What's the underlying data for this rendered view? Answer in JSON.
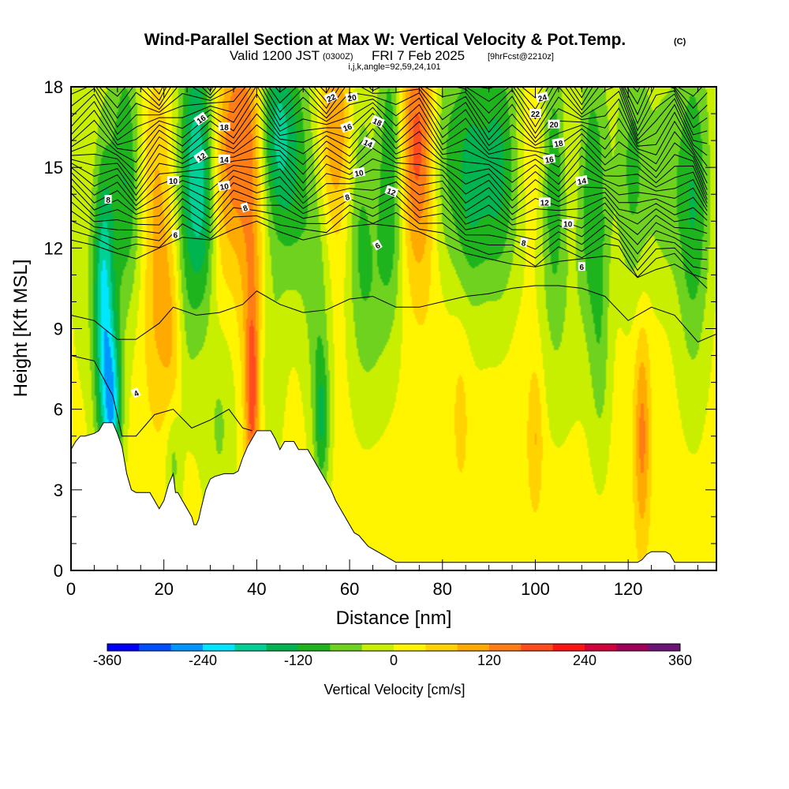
{
  "title": {
    "main": "Wind-Parallel Section at Max W: Vertical Velocity & Pot.Temp.",
    "main_mark": "(C)",
    "valid_a": "Valid 1200 JST",
    "valid_b": "(0300Z)",
    "valid_c": "FRI 7 Feb 2025",
    "valid_d": "[9hrFcst@2210z]",
    "indices": "i,j,k,angle=92,59,24,101"
  },
  "chart_data": {
    "type": "heatmap",
    "xlabel": "Distance [nm]",
    "ylabel": "Height [Kft MSL]",
    "xlim": [
      0,
      139
    ],
    "ylim": [
      0,
      18
    ],
    "x_ticks": [
      "0",
      "20",
      "40",
      "60",
      "80",
      "100",
      "120"
    ],
    "y_ticks": [
      "0",
      "3",
      "6",
      "9",
      "12",
      "15",
      "18"
    ],
    "colorbar": {
      "label": "Vertical Velocity [cm/s]",
      "min": -360,
      "max": 360,
      "step": 40,
      "tick_labels": [
        "-360",
        "-240",
        "-120",
        "0",
        "120",
        "240",
        "360"
      ],
      "colors": [
        "#0000ff",
        "#0050ff",
        "#0096ff",
        "#00e6ff",
        "#00d296",
        "#00b450",
        "#1eb41e",
        "#6ed21e",
        "#c8ee00",
        "#fff500",
        "#ffd200",
        "#ffaa00",
        "#ff7d14",
        "#ff4b1e",
        "#ff1414",
        "#d2003c",
        "#a0005a",
        "#6e1478"
      ]
    },
    "terrain": {
      "x": [
        0,
        1,
        2,
        3,
        5,
        6,
        7,
        9,
        10,
        11,
        12,
        13,
        14,
        17,
        18,
        19,
        20,
        21,
        22,
        22.5,
        23,
        24,
        25,
        26,
        26.5,
        27,
        27.5,
        28,
        29,
        30,
        31,
        33,
        35,
        36,
        37,
        38,
        39,
        40,
        41,
        43,
        44,
        45,
        46,
        48,
        49,
        50,
        51,
        52,
        53,
        54,
        55,
        56,
        57,
        58,
        59,
        60,
        61,
        62,
        63,
        64,
        65,
        66,
        67,
        68,
        69,
        70,
        71,
        76,
        80,
        85,
        90,
        95,
        100,
        105,
        110,
        115,
        120,
        122,
        123,
        124,
        125,
        126,
        128,
        129,
        130,
        132,
        135,
        139
      ],
      "y": [
        4.5,
        4.8,
        5.0,
        5.0,
        5.1,
        5.2,
        5.5,
        5.5,
        5.1,
        4.6,
        3.6,
        3.0,
        2.9,
        2.9,
        2.6,
        2.3,
        2.6,
        3.2,
        3.6,
        2.9,
        2.9,
        2.6,
        2.3,
        2.0,
        1.7,
        1.7,
        1.9,
        2.3,
        3.0,
        3.4,
        3.5,
        3.6,
        3.6,
        3.7,
        4.2,
        4.6,
        4.9,
        5.2,
        5.2,
        5.2,
        4.9,
        4.5,
        4.8,
        4.8,
        4.5,
        4.5,
        4.5,
        4.2,
        3.9,
        3.6,
        3.3,
        3.0,
        2.6,
        2.3,
        2.0,
        1.7,
        1.4,
        1.3,
        1.1,
        0.9,
        0.8,
        0.7,
        0.6,
        0.5,
        0.4,
        0.3,
        0.3,
        0.3,
        0.3,
        0.3,
        0.3,
        0.3,
        0.3,
        0.3,
        0.3,
        0.3,
        0.3,
        0.3,
        0.4,
        0.6,
        0.7,
        0.7,
        0.7,
        0.6,
        0.3,
        0.3,
        0.3,
        0.3
      ]
    },
    "w_features": [
      {
        "x": 7,
        "y": 9.5,
        "sx": 1.5,
        "sy": 4.0,
        "w": -180
      },
      {
        "x": 9,
        "y": 6.0,
        "sx": 1.4,
        "sy": 2.2,
        "w": -200
      },
      {
        "x": 12,
        "y": 15.0,
        "sx": 2.5,
        "sy": 3.5,
        "w": -130
      },
      {
        "x": 6,
        "y": 10.0,
        "sx": 4.0,
        "sy": 3.0,
        "w": -40
      },
      {
        "x": 16,
        "y": 16.0,
        "sx": 3.0,
        "sy": 2.5,
        "w": 40
      },
      {
        "x": 19,
        "y": 11.5,
        "sx": 2.5,
        "sy": 4.0,
        "w": 90
      },
      {
        "x": 22,
        "y": 9.0,
        "sx": 1.5,
        "sy": 2.5,
        "w": 60
      },
      {
        "x": 25,
        "y": 11.0,
        "sx": 2.5,
        "sy": 3.5,
        "w": -80
      },
      {
        "x": 27,
        "y": 16.0,
        "sx": 2.5,
        "sy": 3.0,
        "w": -150
      },
      {
        "x": 29,
        "y": 12.5,
        "sx": 1.8,
        "sy": 2.5,
        "w": -90
      },
      {
        "x": 22,
        "y": 4.0,
        "sx": 1.2,
        "sy": 1.5,
        "w": -70
      },
      {
        "x": 31,
        "y": 13.0,
        "sx": 2.5,
        "sy": 3.0,
        "w": 50
      },
      {
        "x": 35,
        "y": 16.0,
        "sx": 2.5,
        "sy": 3.0,
        "w": 130
      },
      {
        "x": 39,
        "y": 14.0,
        "sx": 2.0,
        "sy": 5.0,
        "w": 110
      },
      {
        "x": 39,
        "y": 6.5,
        "sx": 1.0,
        "sy": 2.5,
        "w": 150
      },
      {
        "x": 32,
        "y": 5.5,
        "sx": 2.5,
        "sy": 3.0,
        "w": -60
      },
      {
        "x": 43,
        "y": 8.0,
        "sx": 2.0,
        "sy": 3.0,
        "w": -50
      },
      {
        "x": 44,
        "y": 16.5,
        "sx": 2.5,
        "sy": 2.5,
        "w": -130
      },
      {
        "x": 48,
        "y": 15.0,
        "sx": 3.0,
        "sy": 3.5,
        "w": -100
      },
      {
        "x": 53,
        "y": 10.0,
        "sx": 2.0,
        "sy": 3.5,
        "w": -70
      },
      {
        "x": 54,
        "y": 5.5,
        "sx": 1.2,
        "sy": 2.0,
        "w": -120
      },
      {
        "x": 57,
        "y": 16.5,
        "sx": 2.5,
        "sy": 3.0,
        "w": 120
      },
      {
        "x": 62,
        "y": 13.0,
        "sx": 2.0,
        "sy": 4.0,
        "w": -70
      },
      {
        "x": 65,
        "y": 10.0,
        "sx": 2.5,
        "sy": 3.0,
        "w": -60
      },
      {
        "x": 69,
        "y": 15.0,
        "sx": 2.0,
        "sy": 4.0,
        "w": -130
      },
      {
        "x": 73,
        "y": 16.0,
        "sx": 2.5,
        "sy": 3.0,
        "w": 100
      },
      {
        "x": 76,
        "y": 15.5,
        "sx": 2.5,
        "sy": 3.5,
        "w": 130
      },
      {
        "x": 80,
        "y": 15.5,
        "sx": 3.0,
        "sy": 3.0,
        "w": -90
      },
      {
        "x": 86,
        "y": 14.5,
        "sx": 2.5,
        "sy": 3.5,
        "w": -110
      },
      {
        "x": 92,
        "y": 15.0,
        "sx": 3.0,
        "sy": 3.5,
        "w": -130
      },
      {
        "x": 100,
        "y": 16.0,
        "sx": 2.5,
        "sy": 3.0,
        "w": 40
      },
      {
        "x": 104,
        "y": 15.0,
        "sx": 2.0,
        "sy": 3.5,
        "w": -120
      },
      {
        "x": 108,
        "y": 15.5,
        "sx": 2.5,
        "sy": 3.0,
        "w": 40
      },
      {
        "x": 112,
        "y": 14.0,
        "sx": 2.5,
        "sy": 4.0,
        "w": -120
      },
      {
        "x": 114,
        "y": 8.0,
        "sx": 1.5,
        "sy": 3.0,
        "w": -60
      },
      {
        "x": 121,
        "y": 15.0,
        "sx": 2.5,
        "sy": 3.5,
        "w": -90
      },
      {
        "x": 123,
        "y": 5.0,
        "sx": 1.2,
        "sy": 2.8,
        "w": 120
      },
      {
        "x": 128,
        "y": 14.5,
        "sx": 2.5,
        "sy": 3.0,
        "w": -60
      },
      {
        "x": 134,
        "y": 13.5,
        "sx": 2.5,
        "sy": 4.5,
        "w": -120
      },
      {
        "x": 100,
        "y": 5.0,
        "sx": 1.2,
        "sy": 2.0,
        "w": 70
      },
      {
        "x": 84,
        "y": 6.0,
        "sx": 1.5,
        "sy": 2.5,
        "w": 40
      },
      {
        "x": 105,
        "y": 9.0,
        "sx": 3.0,
        "sy": 3.0,
        "w": -40
      }
    ],
    "theta_contours": [
      {
        "label": "4",
        "x": [
          0,
          5,
          9,
          11,
          14,
          18,
          22,
          26,
          30,
          34,
          37,
          39
        ],
        "y": [
          8.0,
          7.8,
          6.5,
          5.0,
          5.0,
          5.8,
          6.0,
          5.3,
          5.6,
          6.0,
          5.3,
          5.2
        ]
      },
      {
        "label": "",
        "x": [
          0,
          5,
          10,
          14,
          19,
          22,
          27,
          32,
          37,
          40,
          45,
          50,
          55,
          60,
          65,
          70,
          75,
          80,
          85,
          90,
          95,
          100,
          105,
          110,
          115,
          120,
          125,
          130,
          135,
          139
        ],
        "y": [
          9.5,
          9.3,
          8.6,
          8.6,
          9.2,
          9.8,
          9.5,
          9.6,
          9.9,
          10.4,
          9.9,
          9.6,
          9.7,
          10.1,
          10.2,
          9.8,
          9.8,
          10.0,
          10.2,
          10.3,
          10.5,
          10.6,
          10.6,
          10.5,
          10.2,
          9.3,
          9.8,
          9.5,
          8.5,
          8.8
        ]
      },
      {
        "label": "6",
        "x": [
          0,
          5,
          10,
          14,
          19,
          24,
          30,
          35,
          40,
          45,
          50,
          55,
          60,
          65,
          70,
          75,
          80,
          85,
          90,
          95,
          100,
          105,
          110,
          115,
          118,
          122,
          126,
          130,
          134,
          137
        ],
        "y": [
          12.3,
          12.1,
          11.8,
          11.6,
          12.0,
          12.4,
          12.3,
          12.7,
          13.0,
          12.6,
          12.3,
          12.5,
          12.8,
          12.9,
          12.8,
          12.6,
          12.2,
          11.8,
          11.6,
          11.4,
          11.3,
          11.5,
          11.6,
          11.7,
          11.6,
          10.9,
          11.2,
          11.4,
          11.0,
          10.5
        ]
      }
    ],
    "annotations": [
      "4",
      "6",
      "6",
      "6",
      "8",
      "8",
      "8",
      "8",
      "10",
      "10",
      "10",
      "10",
      "12",
      "12",
      "12",
      "14",
      "14",
      "14",
      "16",
      "16",
      "16",
      "18",
      "18",
      "18",
      "20",
      "20",
      "22",
      "22",
      "24"
    ],
    "annotation_points": [
      {
        "x": 14,
        "y": 6.6,
        "rot": -25
      },
      {
        "x": 22.5,
        "y": 12.5,
        "rot": 0
      },
      {
        "x": 66,
        "y": 12.1,
        "rot": -30
      },
      {
        "x": 110,
        "y": 11.3,
        "rot": 0
      },
      {
        "x": 37.5,
        "y": 13.5,
        "rot": -20
      },
      {
        "x": 59.5,
        "y": 13.9,
        "rot": -15
      },
      {
        "x": 97.5,
        "y": 12.2,
        "rot": 10
      },
      {
        "x": 8,
        "y": 13.8,
        "rot": 0
      },
      {
        "x": 33,
        "y": 14.3,
        "rot": -10
      },
      {
        "x": 62,
        "y": 14.8,
        "rot": -10
      },
      {
        "x": 107,
        "y": 12.9,
        "rot": 0
      },
      {
        "x": 22,
        "y": 14.5,
        "rot": 0
      },
      {
        "x": 28,
        "y": 15.4,
        "rot": -35
      },
      {
        "x": 69,
        "y": 14.1,
        "rot": 20
      },
      {
        "x": 102,
        "y": 13.7,
        "rot": 0
      },
      {
        "x": 33,
        "y": 15.3,
        "rot": 0
      },
      {
        "x": 64,
        "y": 15.9,
        "rot": 25
      },
      {
        "x": 110,
        "y": 14.5,
        "rot": -10
      },
      {
        "x": 28,
        "y": 16.8,
        "rot": -35
      },
      {
        "x": 59.5,
        "y": 16.5,
        "rot": -20
      },
      {
        "x": 103,
        "y": 15.3,
        "rot": -10
      },
      {
        "x": 33,
        "y": 16.5,
        "rot": 0
      },
      {
        "x": 66,
        "y": 16.7,
        "rot": 25
      },
      {
        "x": 105,
        "y": 15.9,
        "rot": -10
      },
      {
        "x": 60.5,
        "y": 17.6,
        "rot": -10
      },
      {
        "x": 104,
        "y": 16.6,
        "rot": 0
      },
      {
        "x": 56,
        "y": 17.6,
        "rot": -25
      },
      {
        "x": 100,
        "y": 17.0,
        "rot": 0
      },
      {
        "x": 101.5,
        "y": 17.6,
        "rot": -15
      }
    ]
  }
}
